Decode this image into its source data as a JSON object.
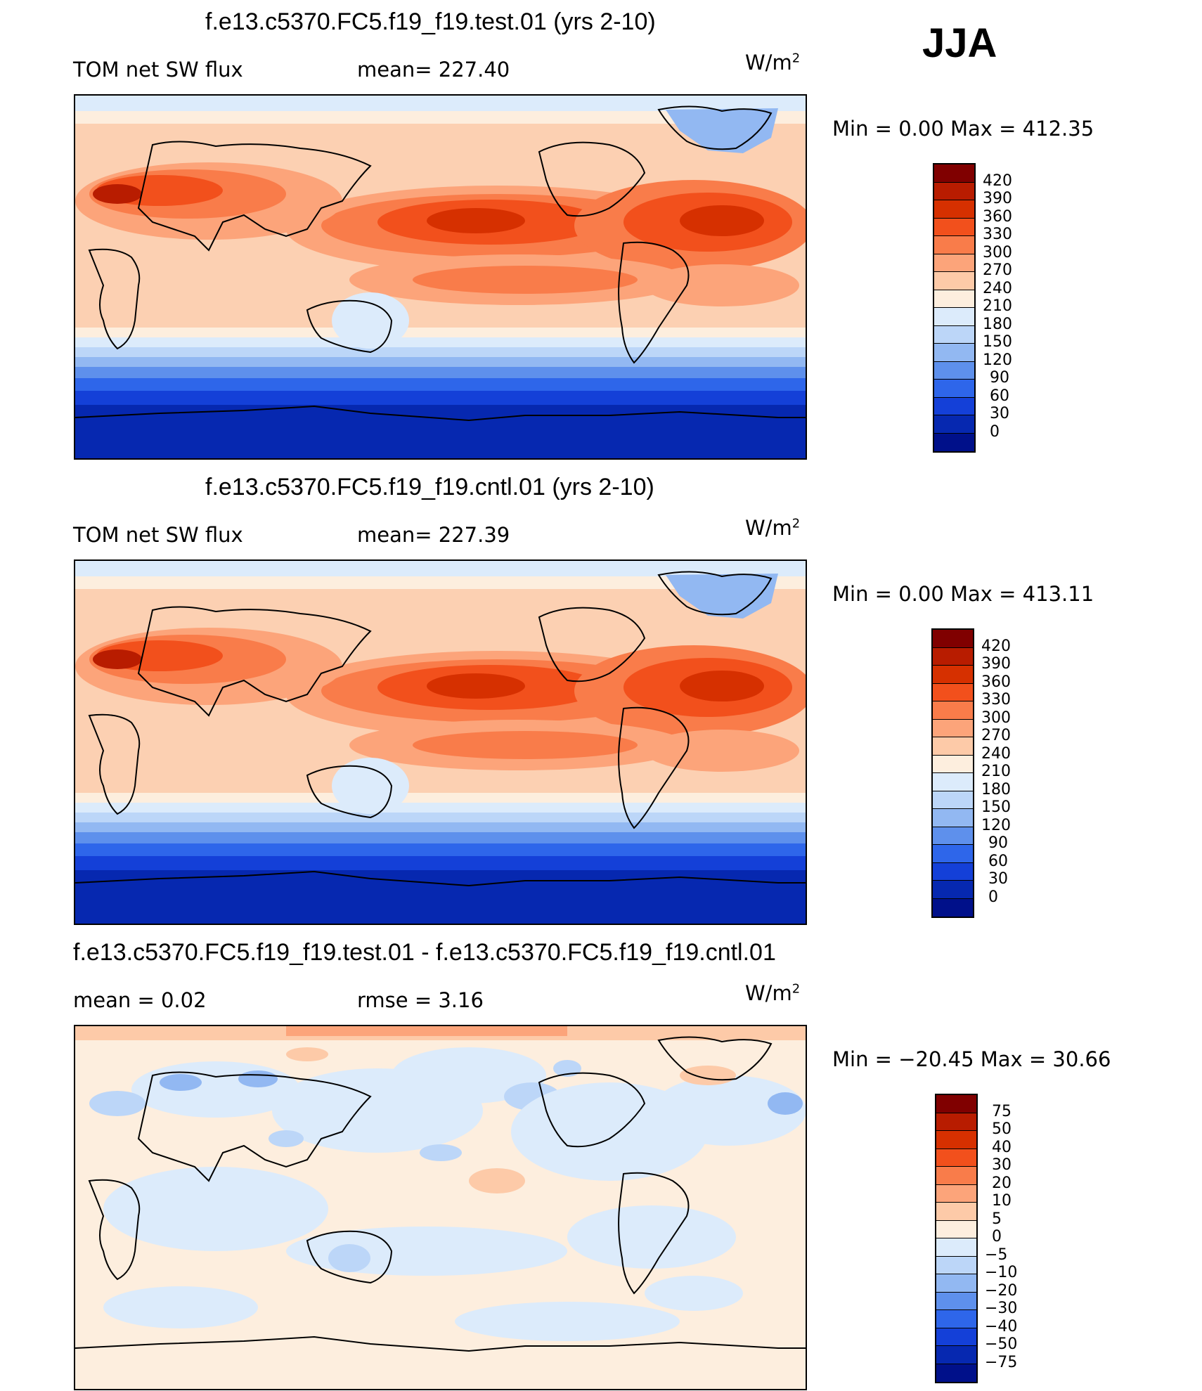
{
  "season": "JJA",
  "panels": [
    {
      "title": "f.e13.c5370.FC5.f19_f19.test.01 (yrs 2-10)",
      "left_text": "TOM net SW flux",
      "mid_text": "mean=  227.40",
      "units": "W/m",
      "units_exp": "2",
      "minmax": "Min  =     0.00  Max  =  412.35",
      "cbar_labels": [
        "420",
        "390",
        "360",
        "330",
        "300",
        "270",
        "240",
        "210",
        "180",
        "150",
        "120",
        "90",
        "60",
        "30",
        "0"
      ],
      "cbar_colors": [
        "#800000",
        "#b81c00",
        "#d63000",
        "#f2501c",
        "#f97c4a",
        "#fca47a",
        "#fdcaa8",
        "#fdeede",
        "#dcebfb",
        "#bcd6f8",
        "#92b8f2",
        "#5e90ec",
        "#2e66ea",
        "#1440d8",
        "#0628b0",
        "#00108a"
      ]
    },
    {
      "title": "f.e13.c5370.FC5.f19_f19.cntl.01 (yrs 2-10)",
      "left_text": "TOM net SW flux",
      "mid_text": "mean=  227.39",
      "units": "W/m",
      "units_exp": "2",
      "minmax": "Min  =     0.00  Max  =  413.11",
      "cbar_labels": [
        "420",
        "390",
        "360",
        "330",
        "300",
        "270",
        "240",
        "210",
        "180",
        "150",
        "120",
        "90",
        "60",
        "30",
        "0"
      ],
      "cbar_colors": [
        "#800000",
        "#b81c00",
        "#d63000",
        "#f2501c",
        "#f97c4a",
        "#fca47a",
        "#fdcaa8",
        "#fdeede",
        "#dcebfb",
        "#bcd6f8",
        "#92b8f2",
        "#5e90ec",
        "#2e66ea",
        "#1440d8",
        "#0628b0",
        "#00108a"
      ]
    },
    {
      "title": "f.e13.c5370.FC5.f19_f19.test.01 - f.e13.c5370.FC5.f19_f19.cntl.01",
      "left_text": "mean  =     0.02",
      "mid_text": "rmse  =     3.16",
      "units": "W/m",
      "units_exp": "2",
      "minmax": "Min  = −20.45  Max  =    30.66",
      "cbar_labels": [
        "75",
        "50",
        "40",
        "30",
        "20",
        "10",
        "5",
        "0",
        "−5",
        "−10",
        "−20",
        "−30",
        "−40",
        "−50",
        "−75"
      ],
      "cbar_colors": [
        "#800000",
        "#b81c00",
        "#d63000",
        "#f2501c",
        "#f97c4a",
        "#fca47a",
        "#fdcaa8",
        "#fdeede",
        "#dcebfb",
        "#bcd6f8",
        "#92b8f2",
        "#5e90ec",
        "#2e66ea",
        "#1440d8",
        "#0628b0",
        "#00108a"
      ]
    }
  ]
}
